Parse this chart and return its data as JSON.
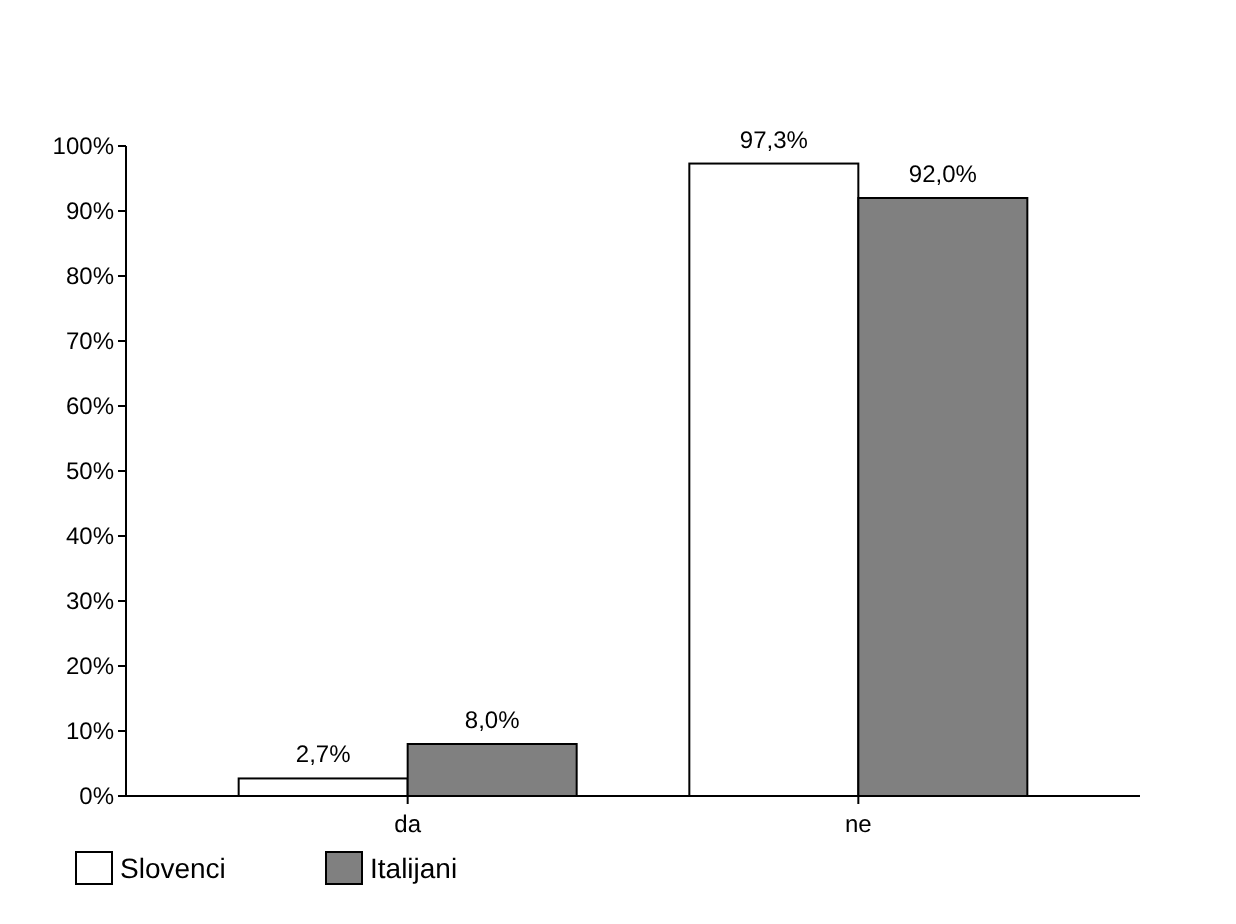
{
  "chart_data": {
    "type": "bar",
    "categories": [
      "da",
      "ne"
    ],
    "series": [
      {
        "name": "Slovenci",
        "color": "#ffffff",
        "values": [
          2.7,
          97.3
        ],
        "value_labels": [
          "2,7%",
          "97,3%"
        ]
      },
      {
        "name": "Italijani",
        "color": "#808080",
        "values": [
          8.0,
          92.0
        ],
        "value_labels": [
          "8,0%",
          "92,0%"
        ]
      }
    ],
    "ylim": [
      0,
      100
    ],
    "yticks": [
      {
        "value": 0,
        "label": "0%"
      },
      {
        "value": 10,
        "label": "10%"
      },
      {
        "value": 20,
        "label": "20%"
      },
      {
        "value": 30,
        "label": "30%"
      },
      {
        "value": 40,
        "label": "40%"
      },
      {
        "value": 50,
        "label": "50%"
      },
      {
        "value": 60,
        "label": "60%"
      },
      {
        "value": 70,
        "label": "70%"
      },
      {
        "value": 80,
        "label": "80%"
      },
      {
        "value": 90,
        "label": "90%"
      },
      {
        "value": 100,
        "label": "100%"
      }
    ],
    "legend": "bottom left",
    "grid": false
  }
}
